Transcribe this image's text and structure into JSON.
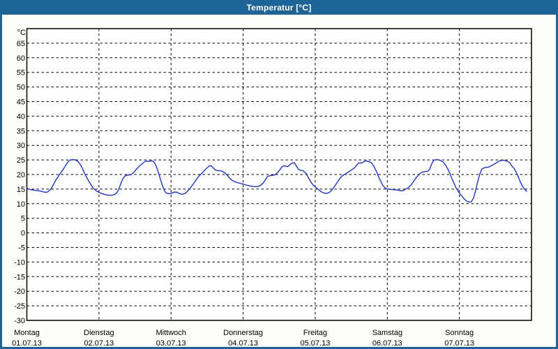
{
  "window": {
    "title": "Temperatur [°C]"
  },
  "colors": {
    "frame": "#1f6496",
    "title_text": "#ffffff",
    "content_bg": "#fcfcf9",
    "plot_bg": "#ffffff",
    "grid": "#000000",
    "axis": "#000000",
    "line": "#2233bb"
  },
  "chart_data": {
    "type": "line",
    "title": "Temperatur [°C]",
    "y_unit": "°C",
    "ylim": [
      -30,
      70
    ],
    "yticks": [
      65,
      60,
      55,
      50,
      45,
      40,
      35,
      30,
      25,
      20,
      15,
      10,
      5,
      0,
      -5,
      -10,
      -15,
      -20,
      -25,
      -30
    ],
    "grid": "dashed, horizontal every 5°C, vertical at each day boundary",
    "x_hours_range": [
      0,
      168
    ],
    "x_categories": [
      {
        "day": "Montag",
        "date": "01.07.13"
      },
      {
        "day": "Dienstag",
        "date": "02.07.13"
      },
      {
        "day": "Mittwoch",
        "date": "03.07.13"
      },
      {
        "day": "Donnerstag",
        "date": "04.07.13"
      },
      {
        "day": "Freitag",
        "date": "05.07.13"
      },
      {
        "day": "Samstag",
        "date": "06.07.13"
      },
      {
        "day": "Sonntag",
        "date": "07.07.13"
      }
    ],
    "series": [
      {
        "name": "Temperatur",
        "points_hours_temp": [
          [
            0.0,
            15.3
          ],
          [
            1.2,
            14.8
          ],
          [
            2.6,
            14.6
          ],
          [
            4.0,
            14.4
          ],
          [
            4.9,
            14.2
          ],
          [
            5.6,
            14.0
          ],
          [
            6.6,
            13.9
          ],
          [
            7.3,
            14.3
          ],
          [
            8.0,
            15.0
          ],
          [
            8.7,
            16.3
          ],
          [
            9.6,
            18.0
          ],
          [
            10.5,
            19.4
          ],
          [
            11.2,
            20.4
          ],
          [
            12.1,
            21.8
          ],
          [
            13.1,
            23.4
          ],
          [
            13.8,
            24.5
          ],
          [
            14.5,
            25.0
          ],
          [
            15.4,
            25.1
          ],
          [
            16.1,
            25.0
          ],
          [
            16.8,
            24.6
          ],
          [
            17.5,
            23.9
          ],
          [
            18.4,
            22.3
          ],
          [
            19.3,
            20.2
          ],
          [
            20.3,
            18.3
          ],
          [
            21.2,
            16.7
          ],
          [
            22.1,
            15.3
          ],
          [
            23.1,
            14.4
          ],
          [
            24.0,
            13.9
          ],
          [
            24.9,
            13.5
          ],
          [
            26.1,
            13.1
          ],
          [
            27.2,
            12.9
          ],
          [
            28.4,
            12.9
          ],
          [
            29.3,
            13.2
          ],
          [
            30.0,
            13.8
          ],
          [
            30.7,
            15.2
          ],
          [
            31.4,
            17.2
          ],
          [
            32.1,
            18.8
          ],
          [
            32.8,
            19.6
          ],
          [
            33.7,
            19.8
          ],
          [
            34.7,
            19.9
          ],
          [
            35.6,
            20.7
          ],
          [
            36.5,
            21.9
          ],
          [
            37.5,
            22.9
          ],
          [
            38.4,
            23.7
          ],
          [
            39.1,
            24.3
          ],
          [
            39.8,
            24.6
          ],
          [
            40.7,
            24.5
          ],
          [
            41.4,
            24.7
          ],
          [
            42.1,
            24.5
          ],
          [
            42.8,
            23.5
          ],
          [
            43.5,
            21.7
          ],
          [
            44.2,
            19.3
          ],
          [
            44.9,
            16.9
          ],
          [
            45.6,
            14.9
          ],
          [
            46.3,
            13.7
          ],
          [
            47.2,
            13.4
          ],
          [
            48.2,
            13.6
          ],
          [
            49.1,
            14.0
          ],
          [
            50.0,
            13.9
          ],
          [
            50.9,
            13.4
          ],
          [
            51.9,
            13.2
          ],
          [
            52.8,
            13.6
          ],
          [
            53.7,
            14.5
          ],
          [
            54.6,
            15.6
          ],
          [
            55.6,
            17.0
          ],
          [
            56.5,
            18.4
          ],
          [
            57.4,
            19.6
          ],
          [
            58.6,
            20.8
          ],
          [
            59.7,
            22.0
          ],
          [
            60.7,
            22.9
          ],
          [
            61.4,
            23.0
          ],
          [
            62.1,
            22.2
          ],
          [
            62.8,
            21.5
          ],
          [
            63.7,
            21.3
          ],
          [
            64.6,
            21.3
          ],
          [
            65.6,
            20.8
          ],
          [
            66.5,
            20.0
          ],
          [
            67.4,
            18.9
          ],
          [
            68.3,
            18.0
          ],
          [
            69.3,
            17.5
          ],
          [
            70.4,
            17.1
          ],
          [
            71.3,
            16.9
          ],
          [
            72.0,
            16.7
          ],
          [
            73.0,
            16.4
          ],
          [
            74.1,
            16.1
          ],
          [
            75.3,
            15.9
          ],
          [
            76.4,
            15.8
          ],
          [
            77.6,
            16.1
          ],
          [
            78.8,
            17.2
          ],
          [
            79.5,
            18.4
          ],
          [
            80.2,
            19.4
          ],
          [
            81.4,
            19.7
          ],
          [
            82.5,
            19.8
          ],
          [
            83.4,
            20.6
          ],
          [
            84.1,
            21.4
          ],
          [
            84.8,
            22.5
          ],
          [
            85.5,
            23.0
          ],
          [
            86.2,
            22.9
          ],
          [
            86.9,
            22.7
          ],
          [
            87.6,
            23.4
          ],
          [
            88.3,
            23.9
          ],
          [
            89.0,
            24.1
          ],
          [
            89.7,
            23.0
          ],
          [
            90.4,
            21.8
          ],
          [
            91.1,
            21.4
          ],
          [
            92.0,
            21.3
          ],
          [
            93.0,
            20.3
          ],
          [
            93.9,
            18.6
          ],
          [
            94.8,
            17.0
          ],
          [
            95.5,
            16.2
          ],
          [
            96.0,
            15.8
          ],
          [
            96.9,
            15.0
          ],
          [
            97.8,
            14.2
          ],
          [
            98.7,
            13.7
          ],
          [
            99.7,
            13.5
          ],
          [
            100.6,
            13.8
          ],
          [
            101.5,
            14.6
          ],
          [
            102.4,
            15.9
          ],
          [
            103.4,
            17.4
          ],
          [
            104.3,
            18.8
          ],
          [
            105.2,
            19.7
          ],
          [
            106.1,
            20.2
          ],
          [
            107.1,
            20.9
          ],
          [
            108.0,
            21.5
          ],
          [
            108.9,
            22.1
          ],
          [
            109.8,
            23.2
          ],
          [
            110.5,
            24.0
          ],
          [
            111.2,
            23.9
          ],
          [
            111.9,
            24.2
          ],
          [
            112.9,
            24.7
          ],
          [
            113.8,
            24.4
          ],
          [
            114.7,
            24.1
          ],
          [
            115.6,
            22.7
          ],
          [
            116.5,
            20.8
          ],
          [
            117.5,
            18.3
          ],
          [
            118.4,
            16.4
          ],
          [
            119.3,
            15.3
          ],
          [
            120.0,
            15.0
          ],
          [
            120.9,
            14.9
          ],
          [
            122.1,
            14.8
          ],
          [
            123.2,
            14.7
          ],
          [
            124.2,
            14.5
          ],
          [
            125.1,
            14.4
          ],
          [
            126.0,
            14.9
          ],
          [
            127.0,
            15.5
          ],
          [
            127.9,
            16.4
          ],
          [
            128.8,
            17.7
          ],
          [
            129.7,
            19.1
          ],
          [
            130.7,
            20.2
          ],
          [
            131.6,
            20.8
          ],
          [
            132.5,
            21.0
          ],
          [
            133.4,
            21.1
          ],
          [
            134.1,
            21.8
          ],
          [
            134.8,
            23.7
          ],
          [
            135.5,
            24.9
          ],
          [
            136.4,
            25.1
          ],
          [
            137.3,
            25.0
          ],
          [
            138.0,
            24.6
          ],
          [
            138.7,
            24.2
          ],
          [
            139.4,
            23.2
          ],
          [
            140.1,
            22.0
          ],
          [
            140.8,
            20.4
          ],
          [
            141.5,
            18.6
          ],
          [
            142.2,
            17.0
          ],
          [
            142.9,
            15.4
          ],
          [
            143.6,
            14.2
          ],
          [
            144.3,
            13.2
          ],
          [
            145.0,
            12.4
          ],
          [
            145.7,
            11.5
          ],
          [
            146.4,
            10.9
          ],
          [
            147.3,
            10.5
          ],
          [
            148.0,
            10.7
          ],
          [
            148.7,
            12.0
          ],
          [
            149.4,
            14.5
          ],
          [
            150.1,
            17.5
          ],
          [
            150.8,
            20.2
          ],
          [
            151.5,
            21.9
          ],
          [
            152.5,
            22.4
          ],
          [
            153.6,
            22.5
          ],
          [
            154.8,
            23.1
          ],
          [
            155.9,
            23.7
          ],
          [
            156.9,
            24.4
          ],
          [
            157.8,
            24.8
          ],
          [
            158.7,
            24.9
          ],
          [
            159.6,
            24.7
          ],
          [
            160.6,
            24.2
          ],
          [
            161.5,
            22.9
          ],
          [
            162.2,
            22.1
          ],
          [
            162.9,
            20.8
          ],
          [
            163.6,
            19.2
          ],
          [
            164.3,
            17.4
          ],
          [
            165.0,
            15.9
          ],
          [
            165.7,
            14.9
          ],
          [
            166.4,
            14.3
          ]
        ]
      }
    ],
    "legend": "none"
  }
}
